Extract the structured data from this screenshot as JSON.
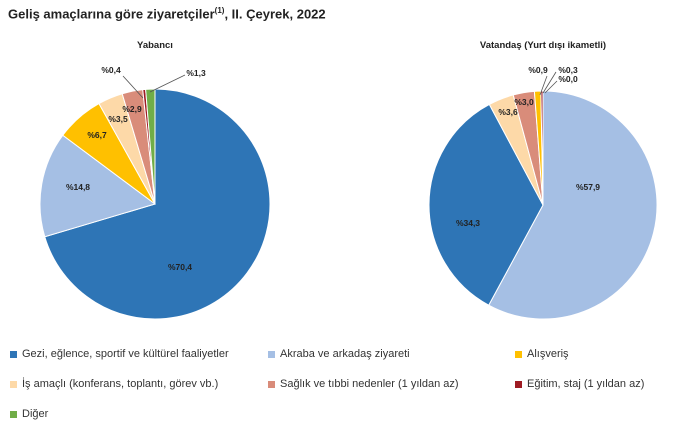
{
  "title": "Geliş amaçlarına göre ziyaretçiler",
  "title_sup": "(1)",
  "title_suffix": ", II. Çeyrek, 2022",
  "colors": {
    "gezi": "#2e75b6",
    "akraba": "#a5bfe4",
    "alisveris": "#ffc000",
    "is": "#fdd9a8",
    "saglik": "#d98c7a",
    "egitim": "#9e1b23",
    "diger": "#70ad47"
  },
  "chart_data": [
    {
      "type": "pie",
      "title": "Yabancı",
      "slices": [
        {
          "key": "gezi",
          "value": 70.4,
          "label": "%70,4"
        },
        {
          "key": "akraba",
          "value": 14.8,
          "label": "%14,8"
        },
        {
          "key": "alisveris",
          "value": 6.7,
          "label": "%6,7"
        },
        {
          "key": "is",
          "value": 3.5,
          "label": "%3,5"
        },
        {
          "key": "saglik",
          "value": 2.9,
          "label": "%2,9"
        },
        {
          "key": "egitim",
          "value": 0.4,
          "label": "%0,4"
        },
        {
          "key": "diger",
          "value": 1.3,
          "label": "%1,3"
        }
      ]
    },
    {
      "type": "pie",
      "title": "Vatandaş (Yurt dışı ikametli)",
      "slices": [
        {
          "key": "akraba",
          "value": 57.9,
          "label": "%57,9"
        },
        {
          "key": "gezi",
          "value": 34.3,
          "label": "%34,3"
        },
        {
          "key": "is",
          "value": 3.6,
          "label": "%3,6"
        },
        {
          "key": "saglik",
          "value": 3.0,
          "label": "%3,0"
        },
        {
          "key": "alisveris",
          "value": 0.9,
          "label": "%0,9"
        },
        {
          "key": "egitim",
          "value": 0.3,
          "label": "%0,3"
        },
        {
          "key": "diger",
          "value": 0.0,
          "label": "%0,0"
        }
      ]
    }
  ],
  "legend": [
    {
      "key": "gezi",
      "label": "Gezi, eğlence, sportif ve kültürel faaliyetler"
    },
    {
      "key": "akraba",
      "label": "Akraba ve arkadaş ziyareti"
    },
    {
      "key": "alisveris",
      "label": "Alışveriş"
    },
    {
      "key": "is",
      "label": "İş amaçlı (konferans, toplantı, görev vb.)"
    },
    {
      "key": "saglik",
      "label": "Sağlık ve tıbbi nedenler (1 yıldan az)"
    },
    {
      "key": "egitim",
      "label": "Eğitim, staj (1 yıldan az)"
    },
    {
      "key": "diger",
      "label": "Diğer"
    }
  ]
}
